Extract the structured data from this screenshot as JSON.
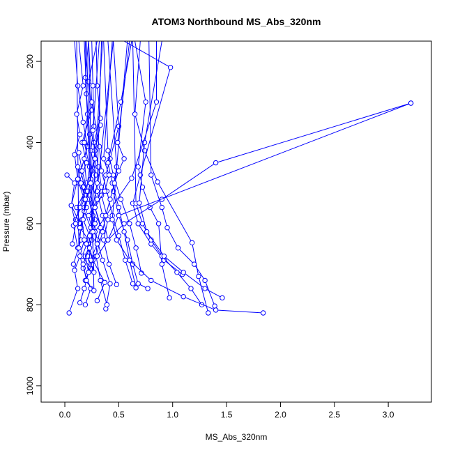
{
  "chart_data": {
    "type": "scatter",
    "title": "ATOM3 Northbound MS_Abs_320nm",
    "xlabel": "MS_Abs_320nm",
    "ylabel": "Pressure (mbar)",
    "xlim": [
      -0.22,
      3.4
    ],
    "ylim": [
      1040,
      150
    ],
    "y_reversed": true,
    "grid": false,
    "legend": "none",
    "xticks": [
      0.0,
      0.5,
      1.0,
      1.5,
      2.0,
      2.5,
      3.0
    ],
    "xtick_labels": [
      "0.0",
      "0.5",
      "1.0",
      "1.5",
      "2.0",
      "2.5",
      "3.0"
    ],
    "yticks": [
      200,
      400,
      600,
      800,
      1000
    ],
    "ytick_labels": [
      "200",
      "400",
      "600",
      "800",
      "1000"
    ],
    "colors": {
      "series": "#0000ff",
      "axes": "#000000"
    },
    "series": [
      {
        "x": [
          0.04,
          0.12,
          0.08,
          0.15,
          0.1,
          0.18,
          0.13,
          0.2,
          0.16,
          0.25,
          0.22,
          0.3
        ],
        "y": [
          820,
          760,
          700,
          640,
          590,
          540,
          500,
          450,
          400,
          320,
          250,
          150
        ]
      },
      {
        "x": [
          0.02,
          0.09,
          0.06,
          0.14,
          0.11,
          0.19,
          0.15,
          0.21,
          0.17,
          0.12,
          0.09
        ],
        "y": [
          480,
          500,
          555,
          600,
          560,
          520,
          470,
          410,
          350,
          260,
          150
        ]
      },
      {
        "x": [
          0.19,
          0.24,
          0.17,
          0.12,
          0.08,
          0.14,
          0.2,
          0.18,
          0.23,
          0.2,
          0.19
        ],
        "y": [
          800,
          760,
          710,
          660,
          605,
          560,
          500,
          440,
          380,
          280,
          150
        ]
      },
      {
        "x": [
          0.3,
          0.37,
          0.26,
          0.22,
          0.28,
          0.23,
          0.29,
          0.24,
          0.27,
          0.26,
          0.25
        ],
        "y": [
          790,
          745,
          690,
          650,
          590,
          540,
          480,
          420,
          360,
          260,
          150
        ]
      },
      {
        "x": [
          0.38,
          0.42,
          0.35,
          0.3,
          0.26,
          0.2,
          0.23,
          0.18,
          0.21,
          0.19,
          0.22
        ],
        "y": [
          810,
          748,
          690,
          640,
          580,
          520,
          460,
          400,
          330,
          240,
          150
        ]
      },
      {
        "x": [
          0.39,
          0.33,
          0.29,
          0.35,
          0.28,
          0.34,
          0.31,
          0.27,
          0.33,
          0.3,
          0.29
        ],
        "y": [
          800,
          740,
          680,
          620,
          560,
          510,
          460,
          400,
          340,
          260,
          150
        ]
      },
      {
        "x": [
          0.48,
          0.41,
          0.36,
          0.4,
          0.34,
          0.38,
          0.42,
          0.5,
          0.45
        ],
        "y": [
          750,
          700,
          640,
          590,
          530,
          480,
          440,
          360,
          150
        ]
      },
      {
        "x": [
          0.63,
          0.56,
          0.5,
          0.44,
          0.39,
          0.34,
          0.32,
          0.25,
          0.22
        ],
        "y": [
          748,
          690,
          630,
          580,
          520,
          470,
          410,
          300,
          150
        ]
      },
      {
        "x": [
          0.71,
          0.66,
          0.6,
          0.52,
          0.45,
          0.4,
          0.36
        ],
        "y": [
          722,
          660,
          600,
          540,
          480,
          420,
          150
        ]
      },
      {
        "x": [
          0.77,
          0.68,
          0.63,
          0.58,
          0.5,
          0.45,
          0.48,
          0.4
        ],
        "y": [
          760,
          748,
          700,
          640,
          580,
          520,
          460,
          150
        ]
      },
      {
        "x": [
          0.97,
          0.9,
          0.87,
          0.79,
          0.72,
          0.68,
          0.75,
          0.65
        ],
        "y": [
          783,
          700,
          600,
          560,
          510,
          460,
          300,
          150
        ]
      },
      {
        "x": [
          0.66,
          0.6,
          0.55,
          0.5,
          0.44,
          0.4,
          0.52,
          0.62
        ],
        "y": [
          758,
          690,
          620,
          560,
          500,
          450,
          300,
          150
        ]
      },
      {
        "x": [
          1.09,
          0.92,
          0.8,
          0.68,
          0.63,
          0.7,
          0.98,
          0.55
        ],
        "y": [
          725,
          690,
          650,
          600,
          550,
          480,
          215,
          150
        ]
      },
      {
        "x": [
          1.27,
          1.17,
          1.04,
          0.9,
          0.8,
          0.72,
          0.66,
          0.63
        ],
        "y": [
          800,
          760,
          720,
          680,
          640,
          600,
          550,
          150
        ]
      },
      {
        "x": [
          1.33,
          1.24,
          1.18,
          0.86,
          0.74,
          0.65,
          0.7
        ],
        "y": [
          820,
          730,
          647,
          497,
          420,
          330,
          150
        ]
      },
      {
        "x": [
          1.39,
          1.3,
          1.2,
          1.05,
          0.95,
          0.9,
          0.8,
          0.78
        ],
        "y": [
          803,
          740,
          700,
          660,
          610,
          560,
          480,
          150
        ]
      },
      {
        "x": [
          1.46,
          1.3,
          1.1,
          0.92,
          0.76,
          0.69,
          0.74,
          0.9
        ],
        "y": [
          783,
          760,
          720,
          680,
          620,
          549,
          400,
          150
        ]
      },
      {
        "x": [
          1.84,
          1.4,
          1.1,
          0.8,
          0.6,
          0.48,
          0.44,
          0.58
        ],
        "y": [
          820,
          813,
          780,
          740,
          690,
          640,
          590,
          150
        ]
      },
      {
        "x": [
          3.21,
          1.4,
          0.9,
          0.55,
          0.4,
          0.35,
          0.3,
          0.45
        ],
        "y": [
          303,
          450,
          540,
          600,
          640,
          580,
          520,
          150
        ]
      },
      {
        "x": [
          3.21,
          0.5,
          0.4,
          0.3,
          0.28,
          0.62,
          0.85,
          0.85
        ],
        "y": [
          303,
          580,
          640,
          680,
          620,
          488,
          300,
          150
        ]
      },
      {
        "x": [
          0.33,
          0.28,
          0.25,
          0.22,
          0.18,
          0.15,
          0.13,
          0.11
        ],
        "y": [
          357,
          420,
          470,
          520,
          560,
          610,
          660,
          150
        ]
      },
      {
        "x": [
          0.17,
          0.2,
          0.14,
          0.22,
          0.16,
          0.24,
          0.19,
          0.27,
          0.22
        ],
        "y": [
          510,
          560,
          610,
          640,
          680,
          710,
          740,
          765,
          150
        ]
      },
      {
        "x": [
          0.13,
          0.16,
          0.21,
          0.18,
          0.24,
          0.2,
          0.26,
          0.22,
          0.35
        ],
        "y": [
          425,
          470,
          520,
          570,
          610,
          650,
          690,
          720,
          150
        ]
      },
      {
        "x": [
          0.07,
          0.1,
          0.06,
          0.12,
          0.09,
          0.14,
          0.11,
          0.17,
          0.13
        ],
        "y": [
          650,
          600,
          555,
          490,
          430,
          380,
          330,
          260,
          150
        ]
      },
      {
        "x": [
          0.09,
          0.14,
          0.18,
          0.16,
          0.21,
          0.24,
          0.28,
          0.26,
          0.32
        ],
        "y": [
          715,
          680,
          640,
          590,
          540,
          490,
          440,
          370,
          150
        ]
      },
      {
        "x": [
          0.14,
          0.18,
          0.22,
          0.19,
          0.25,
          0.28,
          0.26,
          0.3,
          0.34
        ],
        "y": [
          795,
          760,
          720,
          680,
          640,
          600,
          560,
          500,
          150
        ]
      },
      {
        "x": [
          0.35,
          0.38,
          0.42,
          0.46,
          0.5,
          0.55,
          0.49,
          0.6
        ],
        "y": [
          620,
          580,
          540,
          500,
          470,
          440,
          400,
          150
        ]
      },
      {
        "x": [
          0.24,
          0.3,
          0.33,
          0.28,
          0.37,
          0.41,
          0.36,
          0.44
        ],
        "y": [
          690,
          650,
          610,
          560,
          520,
          480,
          440,
          150
        ]
      },
      {
        "x": [
          0.12,
          0.15,
          0.19,
          0.17,
          0.23,
          0.21,
          0.27,
          0.18
        ],
        "y": [
          460,
          500,
          540,
          590,
          630,
          680,
          720,
          150
        ]
      },
      {
        "x": [
          0.2,
          0.17,
          0.23,
          0.26,
          0.22,
          0.3,
          0.24,
          0.2
        ],
        "y": [
          740,
          700,
          660,
          620,
          580,
          540,
          500,
          150
        ]
      }
    ]
  }
}
